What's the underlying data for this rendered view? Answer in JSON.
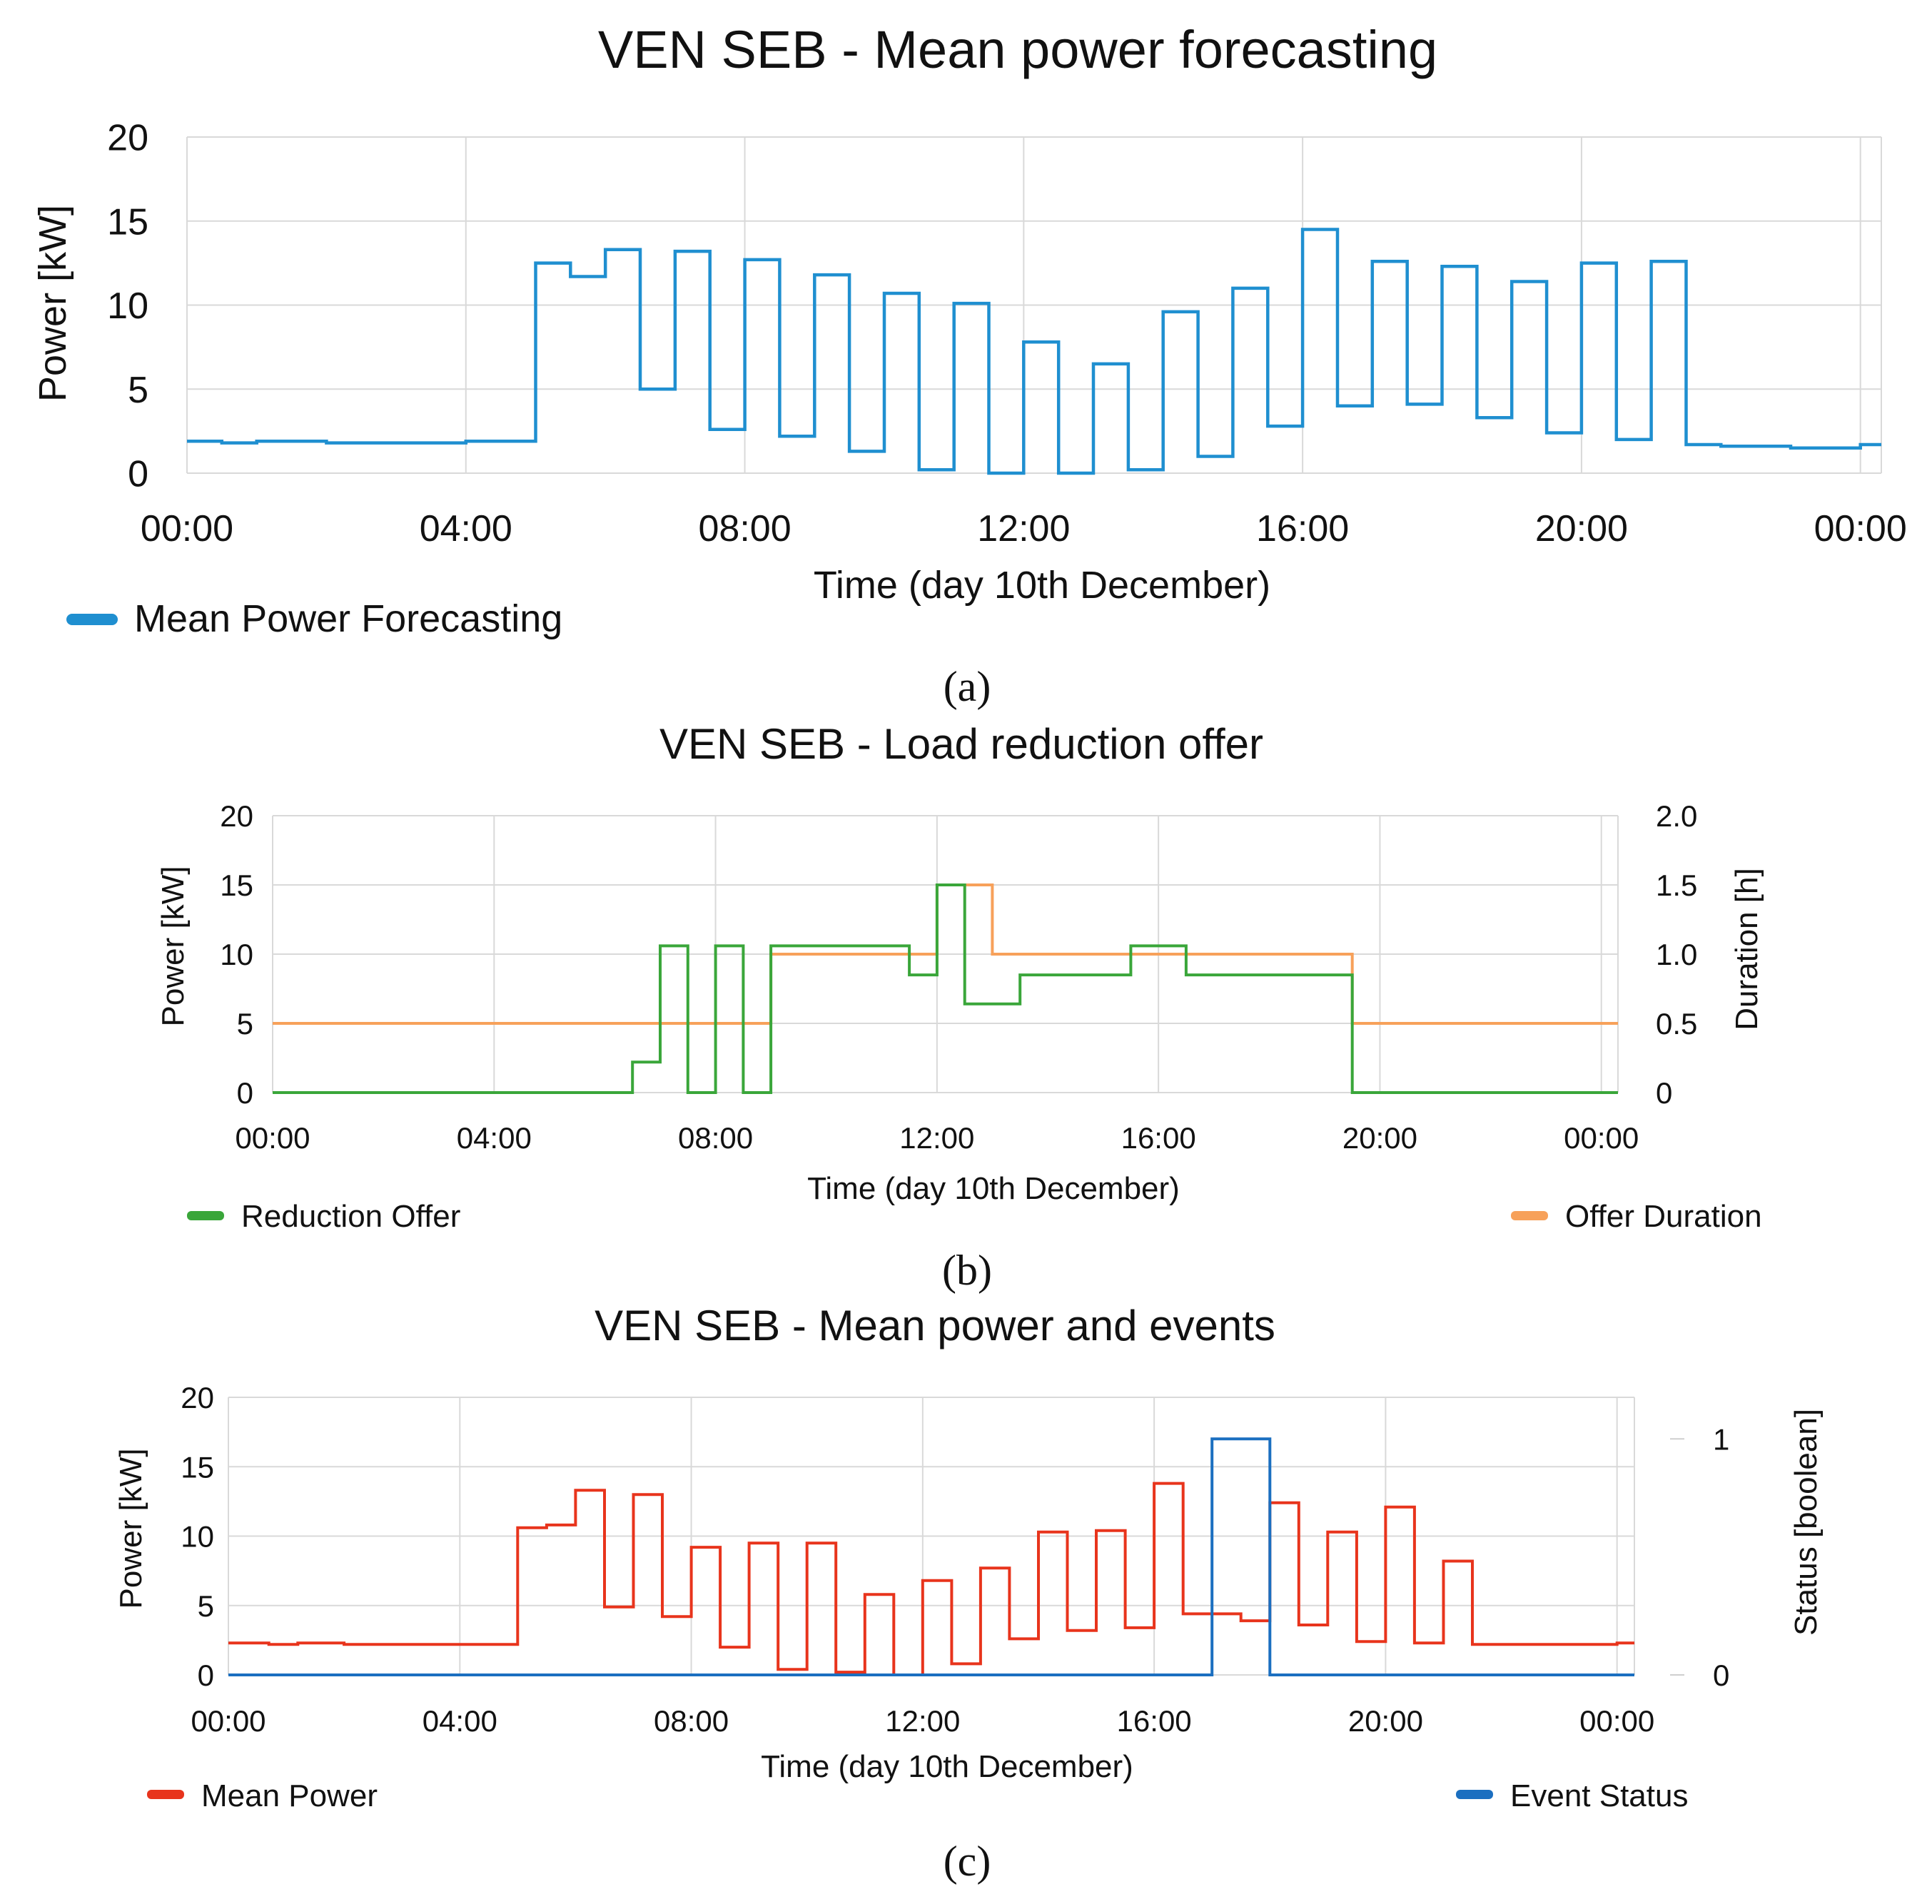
{
  "chart_data": [
    {
      "type": "line",
      "title": "VEN SEB - Mean power forecasting",
      "xlabel": "Time (day 10th December)",
      "ylabel": "Power [kW]",
      "xticks": [
        "00:00",
        "04:00",
        "08:00",
        "12:00",
        "16:00",
        "20:00",
        "00:00"
      ],
      "xlim_hours": [
        0,
        24.3
      ],
      "ylim": [
        0,
        20
      ],
      "yticks": [
        "0",
        "5",
        "10",
        "15",
        "20"
      ],
      "grid": true,
      "legend_position": "bottom-left",
      "subfigure_label": "(a)",
      "series": [
        {
          "name": "Mean Power Forecasting",
          "color": "#1f8fd0",
          "step": true,
          "x": [
            0,
            0.5,
            1,
            2,
            3,
            4,
            5,
            5.5,
            6,
            6.5,
            7,
            7.5,
            8,
            8.5,
            9,
            9.5,
            10,
            10.5,
            11,
            11.5,
            12,
            12.5,
            13,
            13.5,
            14,
            14.5,
            15,
            15.5,
            16,
            16.5,
            17,
            17.5,
            18,
            18.5,
            19,
            19.5,
            20,
            20.5,
            21,
            21.5,
            22,
            23,
            24
          ],
          "y": [
            1.9,
            1.8,
            1.9,
            1.8,
            1.8,
            1.9,
            12.5,
            11.7,
            13.3,
            5.0,
            13.2,
            2.6,
            12.7,
            2.2,
            11.8,
            1.3,
            10.7,
            0.2,
            10.1,
            0.0,
            7.8,
            0.0,
            6.5,
            0.2,
            9.6,
            1.0,
            11.0,
            2.8,
            14.5,
            4.0,
            12.6,
            4.1,
            12.3,
            3.3,
            11.4,
            2.4,
            12.5,
            2.0,
            12.6,
            1.7,
            1.6,
            1.5,
            1.7
          ]
        }
      ]
    },
    {
      "type": "line",
      "title": "VEN SEB - Load reduction offer",
      "xlabel": "Time (day 10th December)",
      "ylabel": "Power [kW]",
      "ylabel_right": "Duration [h]",
      "xticks": [
        "00:00",
        "04:00",
        "08:00",
        "12:00",
        "16:00",
        "20:00",
        "00:00"
      ],
      "xlim_hours": [
        0,
        24.3
      ],
      "ylim": [
        0,
        20
      ],
      "yticks": [
        "0",
        "5",
        "10",
        "15",
        "20"
      ],
      "ylim_right": [
        0,
        2.0
      ],
      "yticks_right": [
        "0",
        "0.5",
        "1.0",
        "1.5",
        "2.0"
      ],
      "grid": true,
      "legend_left": "bottom-left",
      "legend_right": "bottom-right",
      "subfigure_label": "(b)",
      "series": [
        {
          "name": "Reduction Offer",
          "color": "#3aa63a",
          "axis": "left",
          "step": true,
          "x": [
            0,
            6.5,
            7,
            7.5,
            8,
            8.5,
            9,
            11.5,
            12,
            12.5,
            13,
            13.5,
            15.5,
            16.5,
            17,
            19.5,
            24
          ],
          "y": [
            0,
            2.2,
            10.6,
            0.0,
            10.6,
            0.0,
            10.6,
            8.5,
            15.0,
            6.4,
            6.4,
            8.5,
            10.6,
            8.5,
            8.5,
            0.0,
            0.0
          ]
        },
        {
          "name": "Offer Duration",
          "color": "#f7a15a",
          "axis": "right",
          "step": true,
          "x": [
            0,
            9,
            12,
            13,
            19.5,
            24
          ],
          "y": [
            0.5,
            1.0,
            1.5,
            1.0,
            0.5,
            0.5
          ]
        }
      ]
    },
    {
      "type": "line",
      "title": "VEN SEB - Mean power and events",
      "xlabel": "Time (day 10th December)",
      "ylabel": "Power [kW]",
      "ylabel_right": "Status [boolean]",
      "xticks": [
        "00:00",
        "04:00",
        "08:00",
        "12:00",
        "16:00",
        "20:00",
        "00:00"
      ],
      "xlim_hours": [
        0,
        24.3
      ],
      "ylim": [
        0,
        20
      ],
      "yticks": [
        "0",
        "5",
        "10",
        "15",
        "20"
      ],
      "ylim_right": [
        0,
        1.176
      ],
      "yticks_right": [
        "0",
        "1"
      ],
      "grid": true,
      "legend_left": "bottom-left",
      "legend_right": "bottom-right",
      "subfigure_label": "(c)",
      "series": [
        {
          "name": "Mean Power",
          "color": "#e8341c",
          "axis": "left",
          "step": true,
          "x": [
            0,
            0.7,
            1.2,
            2,
            3,
            4,
            4.5,
            5,
            5.5,
            6,
            6.5,
            7,
            7.5,
            8,
            8.5,
            9,
            9.5,
            10,
            10.5,
            11,
            11.5,
            12,
            12.5,
            13,
            13.5,
            14,
            14.5,
            15,
            15.5,
            16,
            16.5,
            17,
            17.5,
            18,
            18.5,
            19,
            19.5,
            20,
            20.5,
            21,
            21.5,
            22,
            23,
            24
          ],
          "y": [
            2.3,
            2.2,
            2.3,
            2.2,
            2.2,
            2.2,
            2.2,
            10.6,
            10.8,
            13.3,
            4.9,
            13.0,
            4.2,
            9.2,
            2.0,
            9.5,
            0.4,
            9.5,
            0.2,
            5.8,
            0.0,
            6.8,
            0.8,
            7.7,
            2.6,
            10.3,
            3.2,
            10.4,
            3.4,
            13.8,
            4.4,
            4.4,
            3.9,
            12.4,
            3.6,
            10.3,
            2.4,
            12.1,
            2.3,
            8.2,
            2.2,
            2.2,
            2.2,
            2.3
          ]
        },
        {
          "name": "Event Status",
          "color": "#1b6fc0",
          "axis": "right",
          "step": true,
          "x": [
            0,
            17,
            18,
            24
          ],
          "y": [
            0,
            1,
            0,
            0
          ]
        }
      ]
    }
  ]
}
